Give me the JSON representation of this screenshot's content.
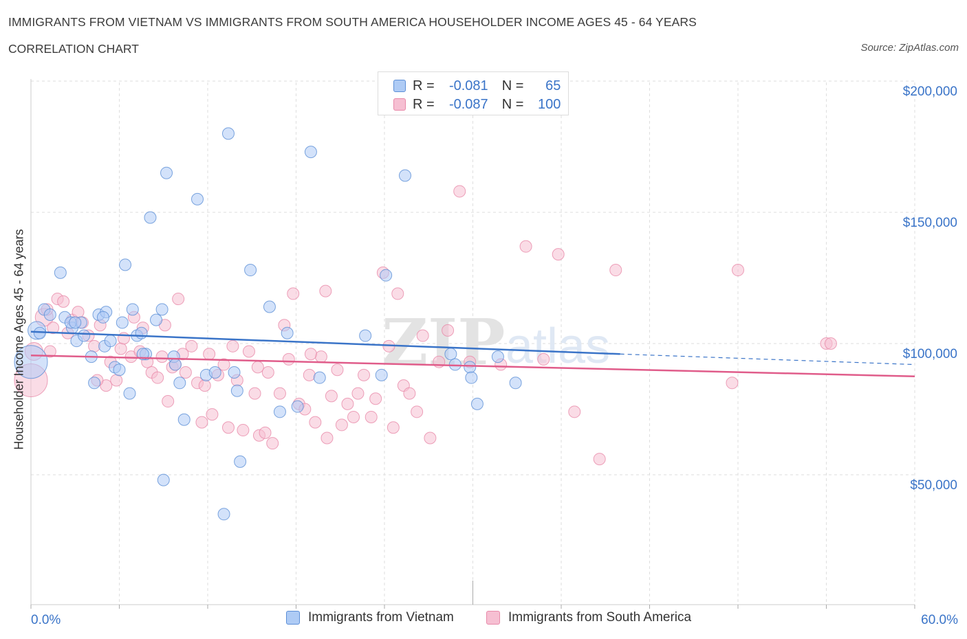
{
  "header": {
    "title": "IMMIGRANTS FROM VIETNAM VS IMMIGRANTS FROM SOUTH AMERICA HOUSEHOLDER INCOME AGES 45 - 64 YEARS",
    "subtitle": "CORRELATION CHART",
    "source": "Source: ZipAtlas.com"
  },
  "legend": {
    "rows": [
      {
        "r_label": "R =",
        "r_value": "-0.081",
        "n_label": "N =",
        "n_value": "65"
      },
      {
        "r_label": "R =",
        "r_value": "-0.087",
        "n_label": "N =",
        "n_value": "100"
      }
    ]
  },
  "bottom_legend": {
    "series1": "Immigrants from Vietnam",
    "series2": "Immigrants from South America"
  },
  "colors": {
    "vietnam_fill": "#aecbf5",
    "vietnam_stroke": "#5b8ed6",
    "vietnam_line": "#3a74c8",
    "south_america_fill": "#f6bfd2",
    "south_america_stroke": "#e889a9",
    "south_america_line": "#e05c8a",
    "axis_text": "#3a74c8",
    "grid": "#dedede"
  },
  "chart_data": {
    "type": "scatter",
    "title": "IMMIGRANTS FROM VIETNAM VS IMMIGRANTS FROM SOUTH AMERICA HOUSEHOLDER INCOME AGES 45 - 64 YEARS",
    "xlabel": "",
    "ylabel": "Householder Income Ages 45 - 64 years",
    "xlim": [
      0,
      60
    ],
    "ylim": [
      5000,
      210000
    ],
    "x_tick_labels": [
      "0.0%",
      "60.0%"
    ],
    "y_ticks": [
      50000,
      100000,
      150000,
      200000
    ],
    "y_tick_labels": [
      "$50,000",
      "$100,000",
      "$150,000",
      "$200,000"
    ],
    "grid": true,
    "legend_position": "top-center",
    "watermark": "ZIPatlas",
    "series": [
      {
        "name": "Immigrants from Vietnam",
        "color": "#5b8ed6",
        "trend": {
          "x": [
            0,
            40
          ],
          "y": [
            104500,
            96000
          ],
          "dashed_extension_to": [
            60,
            92000
          ]
        },
        "points": [
          [
            0.0,
            93000,
            3
          ],
          [
            0.4,
            105000,
            2
          ],
          [
            0.6,
            104000,
            1
          ],
          [
            0.9,
            113000,
            1
          ],
          [
            1.3,
            111000,
            1
          ],
          [
            2.0,
            127000,
            1
          ],
          [
            2.3,
            110000,
            1
          ],
          [
            2.8,
            106000,
            1
          ],
          [
            3.1,
            101000,
            1
          ],
          [
            3.4,
            108000,
            1
          ],
          [
            2.7,
            108000,
            1
          ],
          [
            3.6,
            103000,
            1
          ],
          [
            4.1,
            95000,
            1
          ],
          [
            4.3,
            85000,
            1
          ],
          [
            4.6,
            111000,
            1
          ],
          [
            5.0,
            99000,
            1
          ],
          [
            5.1,
            112000,
            1
          ],
          [
            5.4,
            101000,
            1
          ],
          [
            5.7,
            91000,
            1
          ],
          [
            6.0,
            90000,
            1
          ],
          [
            6.2,
            108000,
            1
          ],
          [
            6.4,
            130000,
            1
          ],
          [
            6.7,
            81000,
            1
          ],
          [
            6.9,
            113000,
            1
          ],
          [
            7.2,
            103000,
            1
          ],
          [
            7.5,
            104000,
            1
          ],
          [
            7.8,
            96000,
            1
          ],
          [
            8.1,
            148000,
            1
          ],
          [
            8.5,
            109000,
            1
          ],
          [
            8.9,
            113000,
            1
          ],
          [
            9.2,
            165000,
            1
          ],
          [
            9.0,
            48000,
            1
          ],
          [
            9.7,
            95000,
            1
          ],
          [
            9.8,
            92000,
            1
          ],
          [
            10.1,
            85000,
            1
          ],
          [
            10.4,
            71000,
            1
          ],
          [
            11.3,
            155000,
            1
          ],
          [
            11.9,
            88000,
            1
          ],
          [
            12.5,
            89000,
            1
          ],
          [
            13.1,
            35000,
            1
          ],
          [
            13.4,
            180000,
            1
          ],
          [
            13.8,
            89000,
            1
          ],
          [
            14.0,
            82000,
            1
          ],
          [
            14.2,
            55000,
            1
          ],
          [
            14.9,
            128000,
            1
          ],
          [
            16.2,
            114000,
            1
          ],
          [
            16.9,
            74000,
            1
          ],
          [
            17.4,
            104000,
            1
          ],
          [
            18.1,
            76000,
            1
          ],
          [
            19.0,
            173000,
            1
          ],
          [
            19.6,
            87000,
            1
          ],
          [
            22.7,
            103000,
            1
          ],
          [
            23.8,
            88000,
            1
          ],
          [
            24.1,
            126000,
            1
          ],
          [
            25.4,
            164000,
            1
          ],
          [
            28.5,
            96000,
            1
          ],
          [
            28.8,
            92000,
            1
          ],
          [
            29.8,
            91000,
            1
          ],
          [
            29.9,
            87000,
            1
          ],
          [
            30.3,
            77000,
            1
          ],
          [
            31.7,
            95000,
            1
          ],
          [
            32.9,
            85000,
            1
          ],
          [
            3.0,
            108000,
            1
          ],
          [
            4.9,
            110000,
            1
          ],
          [
            7.6,
            96000,
            1
          ]
        ]
      },
      {
        "name": "Immigrants from South America",
        "color": "#e889a9",
        "trend": {
          "x": [
            0,
            60
          ],
          "y": [
            95500,
            87500
          ]
        },
        "points": [
          [
            0.0,
            86000,
            3
          ],
          [
            0.2,
            97000,
            2
          ],
          [
            0.9,
            110000,
            2
          ],
          [
            1.1,
            113000,
            1
          ],
          [
            1.5,
            106000,
            1
          ],
          [
            1.8,
            117000,
            1
          ],
          [
            2.2,
            116000,
            1
          ],
          [
            2.5,
            104000,
            1
          ],
          [
            2.8,
            109000,
            1
          ],
          [
            3.2,
            112000,
            1
          ],
          [
            3.5,
            108000,
            1
          ],
          [
            3.9,
            103000,
            1
          ],
          [
            4.3,
            99000,
            1
          ],
          [
            4.7,
            107000,
            1
          ],
          [
            5.1,
            84000,
            1
          ],
          [
            5.4,
            93000,
            1
          ],
          [
            5.8,
            86000,
            1
          ],
          [
            6.1,
            98000,
            1
          ],
          [
            6.3,
            102000,
            1
          ],
          [
            6.8,
            95000,
            1
          ],
          [
            7.0,
            110000,
            1
          ],
          [
            7.4,
            97000,
            1
          ],
          [
            7.6,
            106000,
            1
          ],
          [
            7.9,
            93000,
            1
          ],
          [
            8.2,
            89000,
            1
          ],
          [
            8.6,
            87000,
            1
          ],
          [
            8.9,
            95000,
            1
          ],
          [
            9.1,
            107000,
            1
          ],
          [
            9.3,
            78000,
            1
          ],
          [
            9.6,
            91000,
            1
          ],
          [
            10.0,
            117000,
            1
          ],
          [
            10.3,
            96000,
            1
          ],
          [
            10.5,
            89000,
            1
          ],
          [
            10.9,
            99000,
            1
          ],
          [
            11.3,
            85000,
            1
          ],
          [
            11.6,
            70000,
            1
          ],
          [
            12.1,
            96000,
            1
          ],
          [
            12.3,
            73000,
            1
          ],
          [
            12.7,
            88000,
            1
          ],
          [
            13.1,
            92000,
            1
          ],
          [
            13.4,
            68000,
            1
          ],
          [
            13.7,
            99000,
            1
          ],
          [
            14.0,
            86000,
            1
          ],
          [
            14.4,
            67000,
            1
          ],
          [
            14.8,
            97000,
            1
          ],
          [
            15.2,
            81000,
            1
          ],
          [
            15.5,
            65000,
            1
          ],
          [
            15.9,
            66000,
            1
          ],
          [
            16.1,
            89000,
            1
          ],
          [
            16.4,
            62000,
            1
          ],
          [
            16.9,
            81000,
            1
          ],
          [
            17.2,
            107000,
            1
          ],
          [
            17.5,
            94000,
            1
          ],
          [
            17.8,
            119000,
            1
          ],
          [
            18.2,
            77000,
            1
          ],
          [
            18.6,
            75000,
            1
          ],
          [
            18.9,
            88000,
            1
          ],
          [
            19.3,
            70000,
            1
          ],
          [
            19.7,
            95000,
            1
          ],
          [
            20.1,
            64000,
            1
          ],
          [
            20.4,
            80000,
            1
          ],
          [
            20.8,
            90000,
            1
          ],
          [
            21.1,
            69000,
            1
          ],
          [
            21.5,
            77000,
            1
          ],
          [
            21.9,
            72000,
            1
          ],
          [
            22.2,
            81000,
            1
          ],
          [
            22.6,
            88000,
            1
          ],
          [
            23.1,
            72000,
            1
          ],
          [
            23.4,
            79000,
            1
          ],
          [
            23.9,
            127000,
            1
          ],
          [
            24.3,
            99000,
            1
          ],
          [
            24.6,
            68000,
            1
          ],
          [
            24.9,
            119000,
            1
          ],
          [
            25.3,
            84000,
            1
          ],
          [
            25.7,
            81000,
            1
          ],
          [
            26.2,
            74000,
            1
          ],
          [
            26.6,
            103000,
            1
          ],
          [
            27.1,
            64000,
            1
          ],
          [
            27.7,
            93000,
            1
          ],
          [
            28.3,
            105000,
            1
          ],
          [
            29.1,
            158000,
            1
          ],
          [
            29.8,
            93000,
            1
          ],
          [
            31.9,
            92000,
            1
          ],
          [
            33.6,
            137000,
            1
          ],
          [
            34.8,
            94000,
            1
          ],
          [
            35.8,
            134000,
            1
          ],
          [
            36.9,
            74000,
            1
          ],
          [
            38.6,
            56000,
            1
          ],
          [
            39.7,
            128000,
            1
          ],
          [
            47.6,
            85000,
            1
          ],
          [
            48.0,
            128000,
            1
          ],
          [
            54.0,
            100000,
            1
          ],
          [
            54.3,
            100000,
            1
          ],
          [
            4.5,
            86000,
            1
          ],
          [
            9.8,
            92000,
            1
          ],
          [
            1.3,
            97000,
            1
          ],
          [
            11.8,
            84000,
            1
          ],
          [
            15.4,
            91000,
            1
          ],
          [
            19.0,
            96000,
            1
          ],
          [
            20.0,
            120000,
            1
          ]
        ]
      }
    ]
  }
}
